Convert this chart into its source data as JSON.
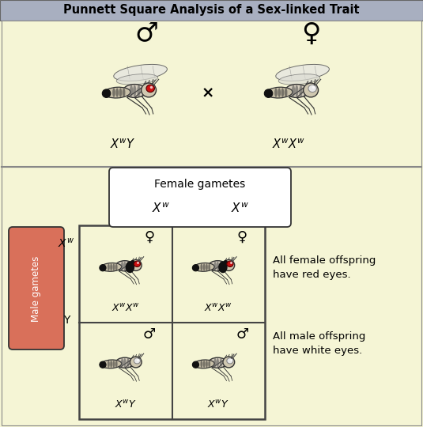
{
  "title": "Punnett Square Analysis of a Sex-linked Trait",
  "title_bg": "#a8afc0",
  "title_fontsize": 10.5,
  "bg_color": "#f5f5d5",
  "male_gametes_box_color": "#d9705a",
  "male_gametes_text": "Male gametes",
  "female_gametes_text": "Female gametes",
  "annotation_female": "All female offspring\nhave red eyes.",
  "annotation_male": "All male offspring\nhave white eyes.",
  "outer_border_color": "#444444",
  "grid_line_color": "#444444",
  "separator_color": "#888888",
  "fig_w": 5.35,
  "fig_h": 5.4,
  "dpi": 100
}
